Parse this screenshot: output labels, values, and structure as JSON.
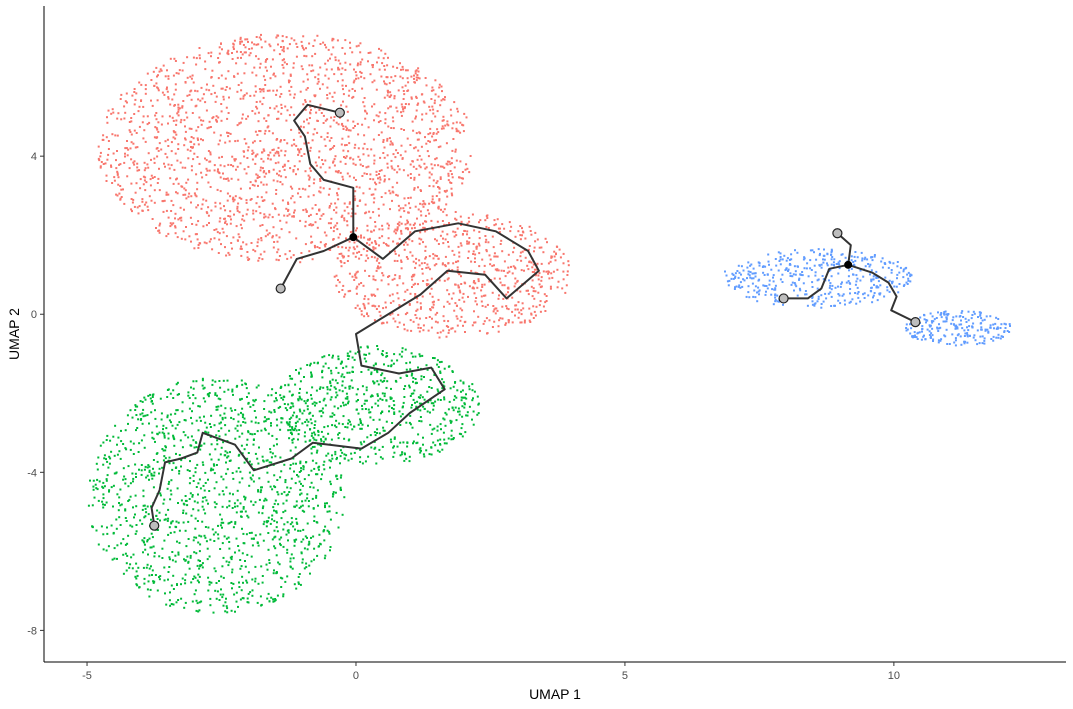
{
  "chart_data": {
    "type": "scatter",
    "title": "",
    "xlabel": "UMAP 1",
    "ylabel": "UMAP 2",
    "xlim": [
      -5.8,
      13.2
    ],
    "ylim": [
      -8.8,
      7.8
    ],
    "x_ticks": [
      -5,
      0,
      5,
      10
    ],
    "y_ticks": [
      -8,
      -4,
      0,
      4
    ],
    "grid": false,
    "legend": "none",
    "series": [
      {
        "color": "#F8766D",
        "clusters": [
          {
            "cx": -1.3,
            "cy": 4.2,
            "rx": 3.5,
            "ry": 2.9,
            "n": 1900
          },
          {
            "cx": 1.8,
            "cy": 1.0,
            "rx": 2.2,
            "ry": 1.6,
            "n": 750
          }
        ]
      },
      {
        "color": "#00BA38",
        "clusters": [
          {
            "cx": -2.6,
            "cy": -4.6,
            "rx": 2.4,
            "ry": 3.0,
            "n": 1350
          },
          {
            "cx": 0.4,
            "cy": -2.3,
            "rx": 1.9,
            "ry": 1.5,
            "n": 650
          }
        ]
      },
      {
        "color": "#619CFF",
        "clusters": [
          {
            "cx": 8.6,
            "cy": 0.9,
            "rx": 1.8,
            "ry": 0.75,
            "n": 420
          },
          {
            "cx": 11.2,
            "cy": -0.35,
            "rx": 1.0,
            "ry": 0.45,
            "n": 220
          }
        ]
      }
    ],
    "trajectories": [
      [
        [
          -0.3,
          5.1
        ],
        [
          -0.9,
          5.3
        ],
        [
          -1.15,
          4.9
        ],
        [
          -0.95,
          4.5
        ],
        [
          -0.85,
          3.8
        ],
        [
          -0.6,
          3.4
        ],
        [
          -0.05,
          3.2
        ],
        [
          -0.05,
          1.95
        ],
        [
          -0.6,
          1.6
        ],
        [
          -1.1,
          1.4
        ],
        [
          -1.4,
          0.65
        ]
      ],
      [
        [
          -0.05,
          1.95
        ],
        [
          0.5,
          1.4
        ],
        [
          1.1,
          2.1
        ],
        [
          1.9,
          2.3
        ],
        [
          2.6,
          2.1
        ],
        [
          3.2,
          1.6
        ],
        [
          3.4,
          1.1
        ],
        [
          2.8,
          0.4
        ],
        [
          2.4,
          1.0
        ],
        [
          1.7,
          1.1
        ],
        [
          1.2,
          0.5
        ],
        [
          0.0,
          -0.5
        ],
        [
          0.1,
          -1.3
        ],
        [
          0.8,
          -1.5
        ],
        [
          1.4,
          -1.35
        ],
        [
          1.65,
          -1.9
        ],
        [
          1.0,
          -2.5
        ],
        [
          0.6,
          -3.0
        ],
        [
          0.1,
          -3.4
        ],
        [
          -0.8,
          -3.25
        ],
        [
          -1.2,
          -3.65
        ],
        [
          -1.9,
          -3.95
        ],
        [
          -2.25,
          -3.3
        ],
        [
          -2.85,
          -3.0
        ],
        [
          -2.95,
          -3.5
        ],
        [
          -3.25,
          -3.65
        ],
        [
          -3.55,
          -3.75
        ],
        [
          -3.65,
          -4.45
        ],
        [
          -3.8,
          -4.9
        ],
        [
          -3.75,
          -5.35
        ]
      ],
      [
        [
          8.95,
          2.05
        ],
        [
          9.2,
          1.75
        ],
        [
          9.15,
          1.25
        ],
        [
          8.8,
          1.15
        ],
        [
          8.65,
          0.65
        ],
        [
          8.4,
          0.4
        ],
        [
          7.95,
          0.4
        ]
      ],
      [
        [
          9.15,
          1.25
        ],
        [
          9.6,
          1.05
        ],
        [
          9.9,
          0.8
        ],
        [
          10.05,
          0.45
        ],
        [
          9.95,
          0.1
        ],
        [
          10.4,
          -0.2
        ]
      ]
    ],
    "root_nodes": [
      [
        -0.05,
        1.95
      ],
      [
        9.15,
        1.25
      ]
    ],
    "end_nodes": [
      [
        -0.3,
        5.1
      ],
      [
        -1.4,
        0.65
      ],
      [
        -3.75,
        -5.35
      ],
      [
        8.95,
        2.05
      ],
      [
        7.95,
        0.4
      ],
      [
        10.4,
        -0.2
      ]
    ]
  }
}
